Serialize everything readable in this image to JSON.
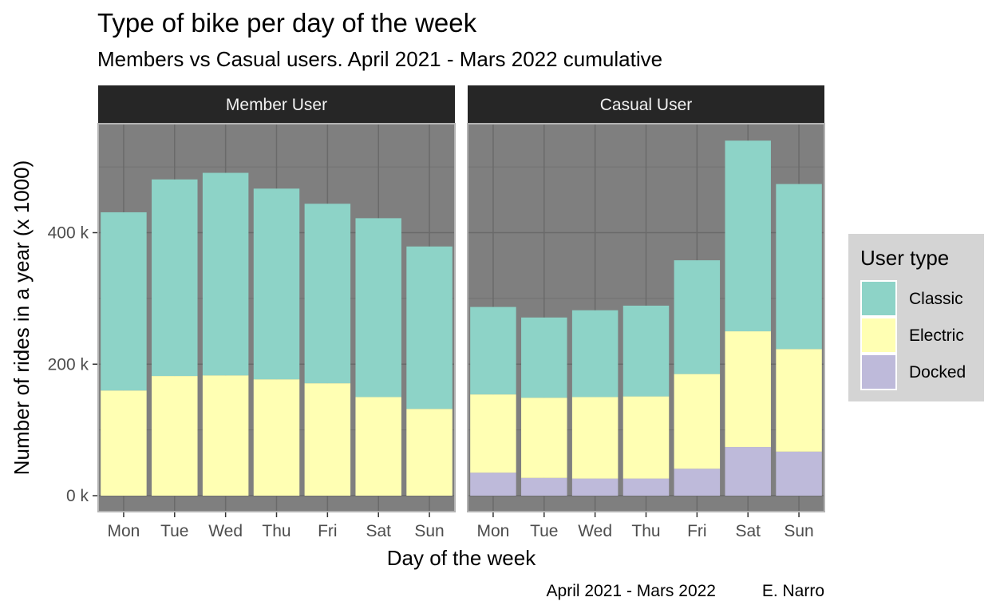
{
  "chart_data": {
    "type": "bar",
    "stacked": true,
    "title": "Type of bike per day of the week",
    "subtitle": "Members vs Casual users. April 2021 - Mars 2022 cumulative",
    "xlabel": "Day of the week",
    "ylabel": "Number of rides in a year (x 1000)",
    "ylim": [
      0,
      575000
    ],
    "yticks": [
      0,
      200000,
      400000
    ],
    "ytick_labels": [
      "0 k",
      "200 k",
      "400 k"
    ],
    "categories": [
      "Mon",
      "Tue",
      "Wed",
      "Thu",
      "Fri",
      "Sat",
      "Sun"
    ],
    "grid": true,
    "legend": {
      "title": "User type",
      "position": "right",
      "entries": [
        "Classic",
        "Electric",
        "Docked"
      ]
    },
    "colors": {
      "Classic": "#8dd3c7",
      "Electric": "#ffffb3",
      "Docked": "#bebada",
      "panel_bg": "#7f7f7f",
      "strip_bg": "#262626",
      "legend_bg": "#d4d4d4"
    },
    "panels": [
      {
        "name": "Member User",
        "series": [
          {
            "name": "Docked",
            "values": [
              0,
              0,
              0,
              0,
              0,
              0,
              0
            ]
          },
          {
            "name": "Electric",
            "values": [
              160000,
              182000,
              183000,
              177000,
              171000,
              150000,
              132000
            ]
          },
          {
            "name": "Classic",
            "values": [
              271000,
              299000,
              308000,
              290000,
              273000,
              272000,
              247000
            ]
          }
        ]
      },
      {
        "name": "Casual User",
        "series": [
          {
            "name": "Docked",
            "values": [
              35000,
              27000,
              26000,
              26000,
              41000,
              74000,
              67000
            ]
          },
          {
            "name": "Electric",
            "values": [
              119000,
              122000,
              124000,
              125000,
              144000,
              176000,
              156000
            ]
          },
          {
            "name": "Classic",
            "values": [
              133000,
              122000,
              132000,
              138000,
              173000,
              290000,
              251000
            ]
          }
        ]
      }
    ],
    "caption": {
      "left": "April 2021 - Mars 2022",
      "right": "E. Narro"
    }
  }
}
